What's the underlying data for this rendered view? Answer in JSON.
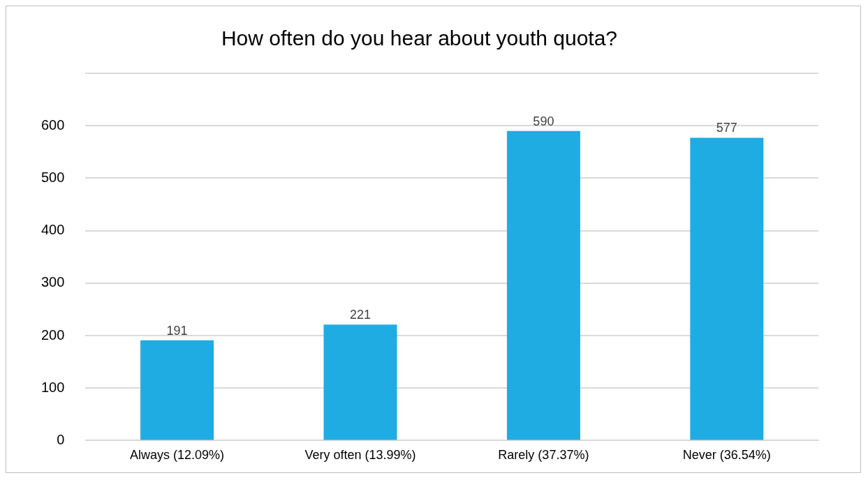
{
  "chart_data": {
    "type": "bar",
    "title": "How often do you hear about youth quota?",
    "categories": [
      "Always (12.09%)",
      "Very often (13.99%)",
      "Rarely (37.37%)",
      "Never (36.54%)"
    ],
    "values": [
      191,
      221,
      590,
      577
    ],
    "color": "#1eace3",
    "ylim": [
      0,
      700
    ],
    "yticks": [
      0,
      100,
      200,
      300,
      400,
      500,
      600,
      {
        "value": 700,
        "label": null
      }
    ],
    "grid": "y",
    "data_labels": true,
    "legend": false
  }
}
